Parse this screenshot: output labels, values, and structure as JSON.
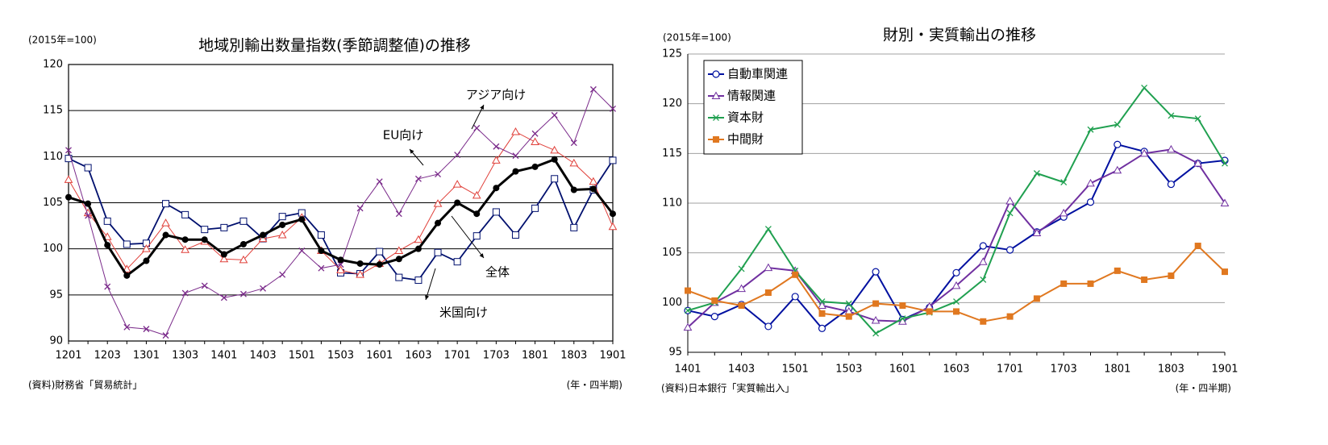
{
  "chart_data": [
    {
      "type": "line",
      "title": "地域別輸出数量指数(季節調整値)の推移",
      "y_unit": "(2015年=100)",
      "x_unit": "(年・四半期)",
      "source": "(資料)財務省「貿易統計」",
      "categories": [
        "1201",
        null,
        "1203",
        null,
        "1301",
        null,
        "1303",
        null,
        "1401",
        null,
        "1403",
        null,
        "1501",
        null,
        "1503",
        null,
        "1601",
        null,
        "1603",
        null,
        "1701",
        null,
        "1703",
        null,
        "1801",
        null,
        "1803",
        null,
        "1901"
      ],
      "ylim": [
        90,
        120
      ],
      "yticks": [
        90,
        95,
        100,
        105,
        110,
        115,
        120
      ],
      "grid": true,
      "grid_color": "#000000",
      "legend": "none",
      "series": [
        {
          "name": "米国向け",
          "color": "#00106e",
          "marker": "square-open",
          "line_width": 1.8,
          "values": [
            109.8,
            108.8,
            103.0,
            100.5,
            100.6,
            104.9,
            103.7,
            102.1,
            102.3,
            103.0,
            101.1,
            103.5,
            103.9,
            101.5,
            97.4,
            97.3,
            99.7,
            96.9,
            96.6,
            99.6,
            98.6,
            101.4,
            104.0,
            101.5,
            104.4,
            107.6,
            102.3,
            106.4,
            109.6
          ]
        },
        {
          "name": "EU向け",
          "color": "#e0403a",
          "marker": "triangle-open",
          "line_width": 1,
          "values": [
            107.5,
            103.9,
            101.3,
            97.8,
            100.0,
            102.8,
            99.9,
            100.8,
            98.9,
            98.8,
            101.1,
            101.5,
            103.4,
            99.8,
            97.7,
            97.2,
            98.4,
            99.8,
            101.0,
            104.9,
            107.0,
            105.8,
            109.6,
            112.7,
            111.6,
            110.7,
            109.3,
            107.3,
            102.4
          ]
        },
        {
          "name": "アジア向け",
          "color": "#7a2a8a",
          "marker": "x",
          "line_width": 1,
          "values": [
            110.7,
            103.6,
            95.9,
            91.5,
            91.3,
            90.6,
            95.2,
            96.0,
            94.7,
            95.1,
            95.7,
            97.2,
            99.8,
            97.9,
            98.3,
            104.4,
            107.3,
            103.8,
            107.6,
            108.1,
            110.2,
            113.1,
            111.1,
            110.1,
            112.5,
            114.5,
            111.5,
            117.3,
            115.2
          ]
        },
        {
          "name": "全体",
          "color": "#000000",
          "marker": "circle-filled",
          "line_width": 3,
          "values": [
            105.6,
            104.9,
            100.4,
            97.1,
            98.7,
            101.5,
            101.0,
            101.0,
            99.4,
            100.5,
            101.5,
            102.6,
            103.2,
            99.8,
            98.8,
            98.4,
            98.3,
            98.9,
            100.0,
            102.8,
            105.0,
            103.8,
            106.6,
            108.4,
            108.9,
            109.7,
            106.4,
            106.5,
            103.8
          ]
        }
      ]
    },
    {
      "type": "line",
      "title": "財別・実質輸出の推移",
      "y_unit": "(2015年=100)",
      "x_unit": "(年・四半期)",
      "source": "(資料)日本銀行「実質輸出入」",
      "categories": [
        "1401",
        null,
        "1403",
        null,
        "1501",
        null,
        "1503",
        null,
        "1601",
        null,
        "1603",
        null,
        "1701",
        null,
        "1703",
        null,
        "1801",
        null,
        "1803",
        null,
        "1901"
      ],
      "ylim": [
        95,
        125
      ],
      "yticks": [
        95,
        100,
        105,
        110,
        115,
        120,
        125
      ],
      "grid": true,
      "grid_color": "#a0a0a0",
      "legend": "upper left",
      "series": [
        {
          "name": "自動車関連",
          "color": "#0010a0",
          "marker": "circle-open",
          "line_width": 2,
          "values": [
            99.2,
            98.6,
            99.8,
            97.6,
            100.6,
            97.4,
            99.4,
            103.1,
            98.3,
            99.5,
            103.0,
            105.7,
            105.3,
            107.1,
            108.6,
            110.1,
            115.9,
            115.2,
            111.9,
            114.0,
            114.3
          ]
        },
        {
          "name": "情報関連",
          "color": "#7030a0",
          "marker": "triangle-open",
          "line_width": 2,
          "values": [
            97.5,
            100.0,
            101.4,
            103.5,
            103.2,
            99.7,
            99.1,
            98.2,
            98.1,
            99.6,
            101.7,
            104.1,
            110.2,
            107.0,
            109.0,
            112.0,
            113.3,
            115.0,
            115.4,
            114.0,
            110.0
          ]
        },
        {
          "name": "資本財",
          "color": "#20a050",
          "marker": "x",
          "line_width": 2,
          "values": [
            99.2,
            100.0,
            103.4,
            107.4,
            103.2,
            100.1,
            99.9,
            96.9,
            98.4,
            99.0,
            100.1,
            102.3,
            109.0,
            113.0,
            112.1,
            117.4,
            117.9,
            121.6,
            118.8,
            118.5,
            114.0
          ]
        },
        {
          "name": "中間財",
          "color": "#e07820",
          "marker": "square-filled",
          "line_width": 2,
          "values": [
            101.2,
            100.2,
            99.7,
            101.0,
            102.8,
            98.9,
            98.6,
            99.9,
            99.7,
            99.1,
            99.1,
            98.1,
            98.6,
            100.4,
            101.9,
            101.9,
            103.2,
            102.3,
            102.7,
            105.7,
            103.1
          ]
        }
      ]
    }
  ]
}
